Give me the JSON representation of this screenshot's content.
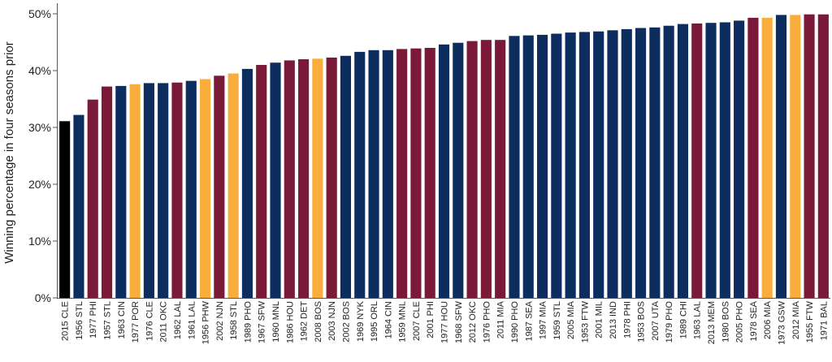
{
  "chart_data": {
    "type": "bar",
    "title": "",
    "xlabel": "",
    "ylabel": "Winning percentage in four seasons prior",
    "ylim": [
      0,
      0.5
    ],
    "yticks": [
      {
        "value": 0,
        "label": "0%"
      },
      {
        "value": 0.1,
        "label": "10%"
      },
      {
        "value": 0.2,
        "label": "20%"
      },
      {
        "value": 0.3,
        "label": "30%"
      },
      {
        "value": 0.4,
        "label": "40%"
      },
      {
        "value": 0.5,
        "label": "50%"
      }
    ],
    "grid": false,
    "legend": "none",
    "colors": {
      "black": "#000000",
      "navy": "#0d2d5e",
      "maroon": "#7b1a38",
      "gold": "#f9ad3d"
    },
    "categories": [
      "2015 CLE",
      "1956 STL",
      "1977 PHI",
      "1957 STL",
      "1963 CIN",
      "1977 POR",
      "1976 CLE",
      "2011 OKC",
      "1962 LAL",
      "1961 LAL",
      "1956 PHW",
      "2002 NJN",
      "1958 STL",
      "1989 PHO",
      "1967 SFW",
      "1960 MNL",
      "1986 HOU",
      "1962 DET",
      "2008 BOS",
      "2003 NJN",
      "2002 BOS",
      "1969 NYK",
      "1995 ORL",
      "1964 CIN",
      "1959 MNL",
      "2007 CLE",
      "2001 PHI",
      "1977 HOU",
      "1968 SFW",
      "2012 OKC",
      "1976 PHO",
      "2011 MIA",
      "1990 PHO",
      "1987 SEA",
      "1997 MIA",
      "1959 STL",
      "2005 MIA",
      "1953 FTW",
      "2001 MIL",
      "2013 IND",
      "1978 PHI",
      "1953 BOS",
      "2007 UTA",
      "1979 PHO",
      "1989 CHI",
      "1963 LAL",
      "2013 MEM",
      "1980 BOS",
      "2005 PHO",
      "1978 SEA",
      "2006 MIA",
      "1973 GSW",
      "2012 MIA",
      "1955 FTW",
      "1971 BAL"
    ],
    "values": [
      0.311,
      0.322,
      0.349,
      0.372,
      0.373,
      0.376,
      0.378,
      0.378,
      0.379,
      0.382,
      0.385,
      0.391,
      0.395,
      0.403,
      0.41,
      0.414,
      0.418,
      0.42,
      0.421,
      0.423,
      0.426,
      0.433,
      0.436,
      0.436,
      0.438,
      0.439,
      0.44,
      0.446,
      0.449,
      0.452,
      0.454,
      0.454,
      0.461,
      0.462,
      0.463,
      0.465,
      0.467,
      0.468,
      0.469,
      0.471,
      0.473,
      0.475,
      0.476,
      0.479,
      0.482,
      0.483,
      0.484,
      0.485,
      0.488,
      0.493,
      0.493,
      0.498,
      0.498,
      0.499,
      0.499
    ],
    "bar_colors": [
      "#000000",
      "#0d2d5e",
      "#7b1a38",
      "#7b1a38",
      "#0d2d5e",
      "#f9ad3d",
      "#0d2d5e",
      "#0d2d5e",
      "#7b1a38",
      "#0d2d5e",
      "#f9ad3d",
      "#7b1a38",
      "#f9ad3d",
      "#0d2d5e",
      "#7b1a38",
      "#0d2d5e",
      "#7b1a38",
      "#7b1a38",
      "#f9ad3d",
      "#7b1a38",
      "#0d2d5e",
      "#0d2d5e",
      "#0d2d5e",
      "#0d2d5e",
      "#7b1a38",
      "#7b1a38",
      "#7b1a38",
      "#0d2d5e",
      "#0d2d5e",
      "#7b1a38",
      "#7b1a38",
      "#7b1a38",
      "#0d2d5e",
      "#0d2d5e",
      "#0d2d5e",
      "#0d2d5e",
      "#0d2d5e",
      "#0d2d5e",
      "#0d2d5e",
      "#0d2d5e",
      "#0d2d5e",
      "#0d2d5e",
      "#0d2d5e",
      "#0d2d5e",
      "#0d2d5e",
      "#7b1a38",
      "#0d2d5e",
      "#0d2d5e",
      "#0d2d5e",
      "#7b1a38",
      "#f9ad3d",
      "#0d2d5e",
      "#f9ad3d",
      "#7b1a38",
      "#7b1a38"
    ]
  }
}
